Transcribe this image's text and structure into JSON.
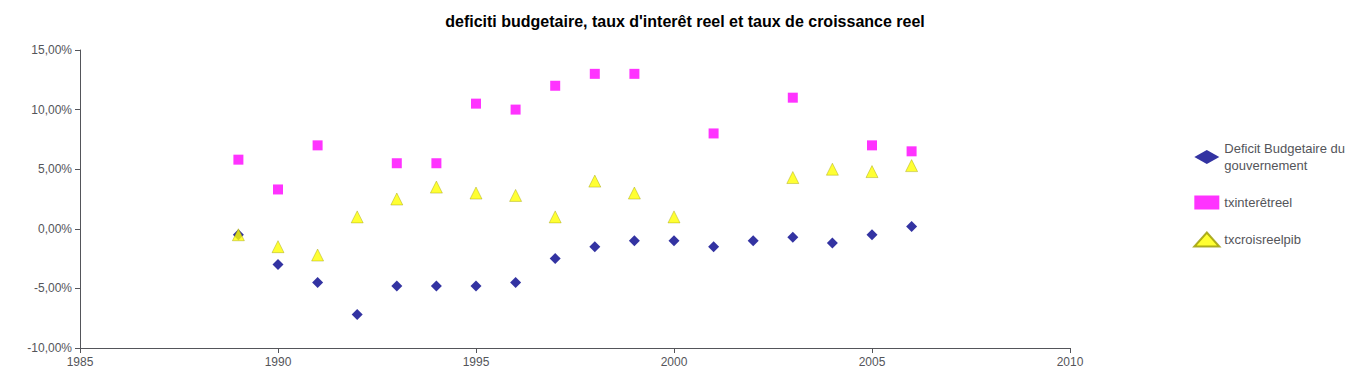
{
  "chart_data": {
    "type": "scatter",
    "title": "deficiti budgetaire, taux d'interêt reel et taux de croissance reel",
    "xlim": [
      1985,
      2010
    ],
    "xticks": [
      1985,
      1990,
      1995,
      2000,
      2005,
      2010
    ],
    "ylim": [
      -0.1,
      0.15
    ],
    "yticks": [
      {
        "value": -0.1,
        "label": "-10,00%"
      },
      {
        "value": -0.05,
        "label": "-5,00%"
      },
      {
        "value": 0.0,
        "label": "0,00%"
      },
      {
        "value": 0.05,
        "label": "5,00%"
      },
      {
        "value": 0.1,
        "label": "10,00%"
      },
      {
        "value": 0.15,
        "label": "15,00%"
      }
    ],
    "grid": false,
    "legend": "right",
    "series": [
      {
        "name": "Deficit Budgetaire du\ngouvernement",
        "color": "#00008B",
        "marker": "diamond",
        "x": [
          1989,
          1990,
          1991,
          1992,
          1993,
          1994,
          1995,
          1996,
          1997,
          1998,
          1999,
          2000,
          2001,
          2002,
          2003,
          2004,
          2005,
          2006
        ],
        "values": [
          -0.005,
          -0.03,
          -0.045,
          -0.072,
          -0.048,
          -0.048,
          -0.048,
          -0.045,
          -0.025,
          -0.015,
          -0.01,
          -0.01,
          -0.015,
          -0.01,
          -0.007,
          -0.012,
          -0.005,
          0.002
        ]
      },
      {
        "name": "txinterêtreel",
        "color": "#FF00FF",
        "marker": "square",
        "x": [
          1989,
          1990,
          1991,
          1993,
          1994,
          1995,
          1996,
          1997,
          1998,
          1999,
          2001,
          2003,
          2005,
          2006
        ],
        "values": [
          0.058,
          0.033,
          0.07,
          0.055,
          0.055,
          0.105,
          0.1,
          0.12,
          0.13,
          0.13,
          0.08,
          0.11,
          0.07,
          0.065
        ]
      },
      {
        "name": "txcroisreelpib",
        "color": "#FFFF00",
        "marker": "triangle",
        "x": [
          1989,
          1990,
          1991,
          1992,
          1993,
          1994,
          1995,
          1996,
          1997,
          1998,
          1999,
          2000,
          2003,
          2004,
          2005,
          2006
        ],
        "values": [
          -0.005,
          -0.015,
          -0.022,
          0.01,
          0.025,
          0.035,
          0.03,
          0.028,
          0.01,
          0.04,
          0.03,
          0.01,
          0.043,
          0.05,
          0.048,
          0.053
        ]
      }
    ]
  }
}
